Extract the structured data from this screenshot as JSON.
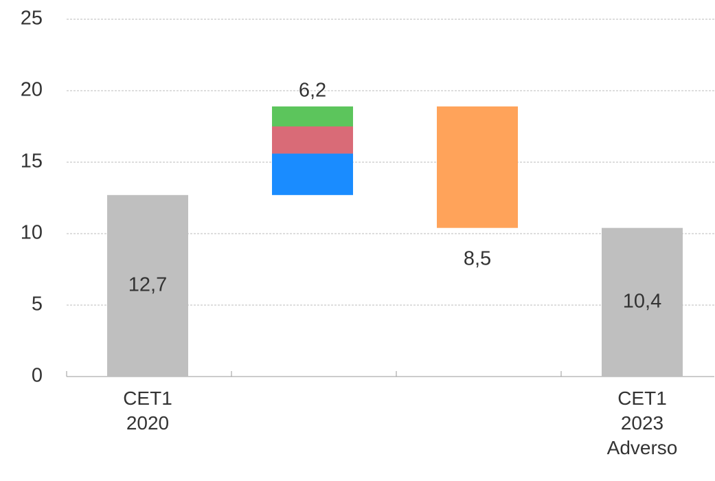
{
  "chart_data": {
    "type": "waterfall",
    "categories": [
      "CET1\n2020",
      null,
      null,
      "CET1\n2023\nAdverso"
    ],
    "measure": [
      "total",
      "increase",
      "decrease",
      "total"
    ],
    "values": [
      12.7,
      6.2,
      8.5,
      10.4
    ],
    "value_labels": [
      "12,7",
      "6,2",
      "8,5",
      "10,4"
    ],
    "colors": [
      "#bfbfbf",
      null,
      "#ffa35a",
      "#bfbfbf"
    ],
    "breakdown": {
      "index": 1,
      "values": [
        2.9,
        1.9,
        1.4
      ],
      "colors": [
        "#1a8cff",
        "#d96b77",
        "#5cc55c"
      ]
    },
    "ylim": [
      0,
      25
    ],
    "yticks": [
      0,
      5,
      10,
      15,
      20,
      25
    ],
    "grid": true
  }
}
